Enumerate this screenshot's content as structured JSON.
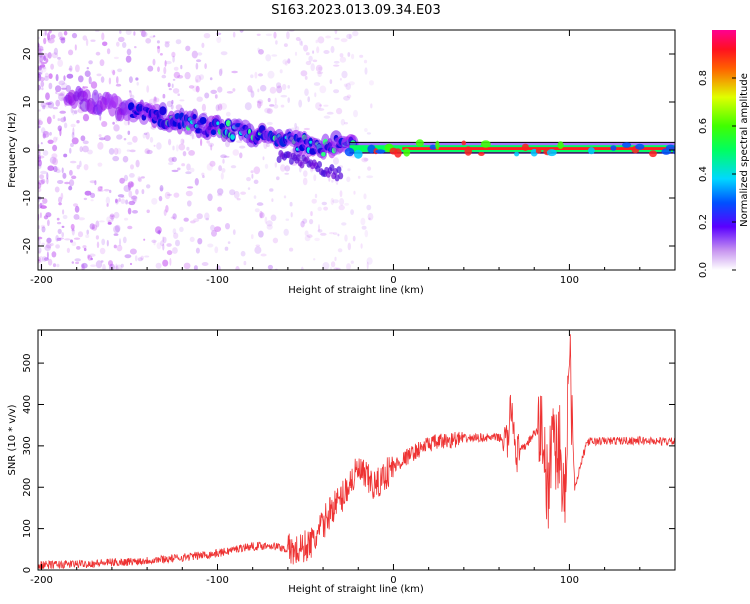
{
  "figure": {
    "title": "S163.2023.013.09.34.E03"
  },
  "chart_data": [
    {
      "type": "heatmap",
      "xlabel": "Height of straight line (km)",
      "ylabel": "Frequency (Hz)",
      "xlim": [
        -202,
        160
      ],
      "ylim": [
        -25,
        25
      ],
      "xticks": [
        -200,
        -100,
        0,
        100
      ],
      "yticks": [
        20,
        10,
        0,
        -10,
        -20
      ],
      "grid": false,
      "colorbar": {
        "label": "Normalized spectral amplitude",
        "range": [
          0,
          1
        ],
        "ticks": [
          0.0,
          0.2,
          0.4,
          0.6,
          0.8
        ]
      },
      "ridge": {
        "x": [
          -180,
          -160,
          -140,
          -120,
          -100,
          -80,
          -60,
          -40,
          -30,
          -20,
          0,
          50,
          100,
          160
        ],
        "frequency": [
          11,
          9,
          7.5,
          6,
          4.5,
          3.5,
          2,
          0.5,
          1.5,
          1,
          0.3,
          0.3,
          0.3,
          0.5
        ]
      }
    },
    {
      "type": "line",
      "xlabel": "Height of straight line (km)",
      "ylabel": "SNR (10 * v/v)",
      "xlim": [
        -202,
        160
      ],
      "ylim": [
        0,
        580
      ],
      "xticks": [
        -200,
        -100,
        0,
        100
      ],
      "yticks": [
        0,
        100,
        200,
        300,
        400,
        500
      ],
      "grid": false,
      "color": "#ee3333",
      "series": [
        {
          "x": [
            -200,
            -175,
            -150,
            -125,
            -100,
            -85,
            -70,
            -55,
            -45,
            -40,
            -35,
            -30,
            -25,
            -20,
            -15,
            -10,
            -5,
            0,
            10,
            20,
            30,
            40,
            50,
            60,
            65,
            67,
            70,
            75,
            80,
            85,
            88,
            90,
            93,
            95,
            97,
            100,
            103,
            110,
            125,
            140,
            160
          ],
          "values": [
            12,
            15,
            20,
            28,
            40,
            55,
            60,
            45,
            70,
            110,
            150,
            170,
            210,
            240,
            220,
            200,
            230,
            250,
            280,
            305,
            312,
            318,
            320,
            320,
            310,
            400,
            280,
            300,
            330,
            340,
            150,
            360,
            280,
            320,
            100,
            560,
            200,
            310,
            312,
            313,
            310
          ]
        }
      ]
    }
  ]
}
